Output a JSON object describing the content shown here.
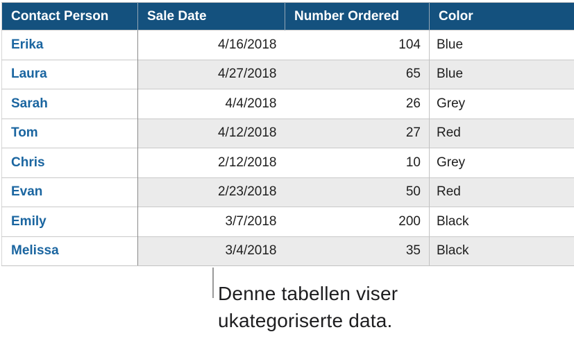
{
  "table": {
    "columns": [
      {
        "label": "Contact Person",
        "align": "left"
      },
      {
        "label": "Sale Date",
        "align": "right"
      },
      {
        "label": "Number Ordered",
        "align": "right"
      },
      {
        "label": "Color",
        "align": "left"
      }
    ],
    "rows": [
      {
        "contact": "Erika",
        "date": "4/16/2018",
        "number": "104",
        "color": "Blue"
      },
      {
        "contact": "Laura",
        "date": "4/27/2018",
        "number": "65",
        "color": "Blue"
      },
      {
        "contact": "Sarah",
        "date": "4/4/2018",
        "number": "26",
        "color": "Grey"
      },
      {
        "contact": "Tom",
        "date": "4/12/2018",
        "number": "27",
        "color": "Red"
      },
      {
        "contact": "Chris",
        "date": "2/12/2018",
        "number": "10",
        "color": "Grey"
      },
      {
        "contact": "Evan",
        "date": "2/23/2018",
        "number": "50",
        "color": "Red"
      },
      {
        "contact": "Emily",
        "date": "3/7/2018",
        "number": "200",
        "color": "Black"
      },
      {
        "contact": "Melissa",
        "date": "3/4/2018",
        "number": "35",
        "color": "Black"
      }
    ]
  },
  "callout": {
    "lines": [
      "Denne tabellen viser",
      "ukategoriserte data."
    ]
  },
  "colors": {
    "header_bg": "#14517E",
    "header_text": "#FFFFFF",
    "name_text": "#1A65A0",
    "alt_row_bg": "#EBEBEB",
    "cell_text": "#1E1E1E",
    "leader_line": "#999999",
    "callout_text": "#1D1D1F"
  }
}
